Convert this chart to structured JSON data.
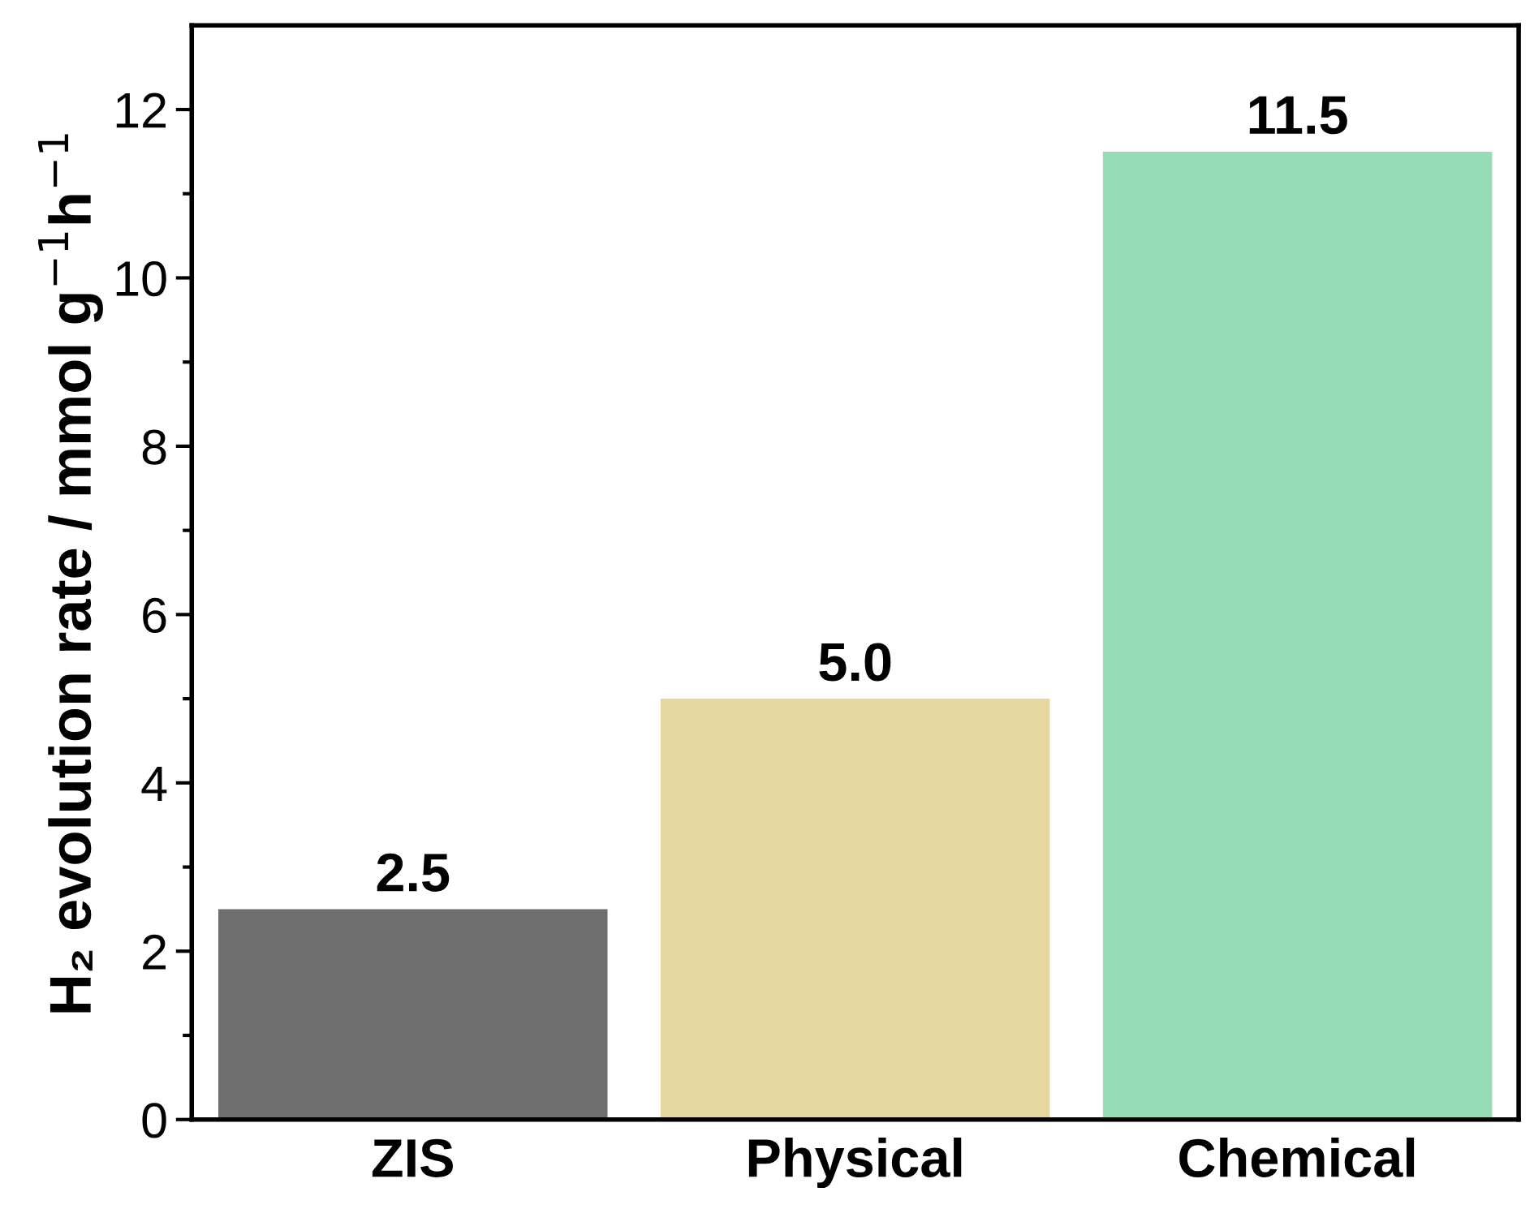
{
  "chart_data": {
    "type": "bar",
    "ylabel": "H₂ evolution rate / mmol g$^{−1}$h$^{−1}$",
    "categories": [
      "ZIS",
      "Physical",
      "Chemical"
    ],
    "values": [
      2.5,
      5.0,
      11.5
    ],
    "value_labels": [
      "2.5",
      "5.0",
      "11.5"
    ],
    "colors": [
      "#6e6e6e",
      "#e6d6a0",
      "#96dcb4"
    ],
    "ylim": [
      0,
      13
    ],
    "yticks": [
      0,
      {
        "value": 1,
        "label": null
      },
      2,
      {
        "value": 3,
        "label": null
      },
      4,
      {
        "value": 5,
        "label": null
      },
      6,
      {
        "value": 7,
        "label": null
      },
      8,
      {
        "value": 9,
        "label": null
      },
      10,
      {
        "value": 11,
        "label": null
      },
      12
    ],
    "grid": false
  }
}
